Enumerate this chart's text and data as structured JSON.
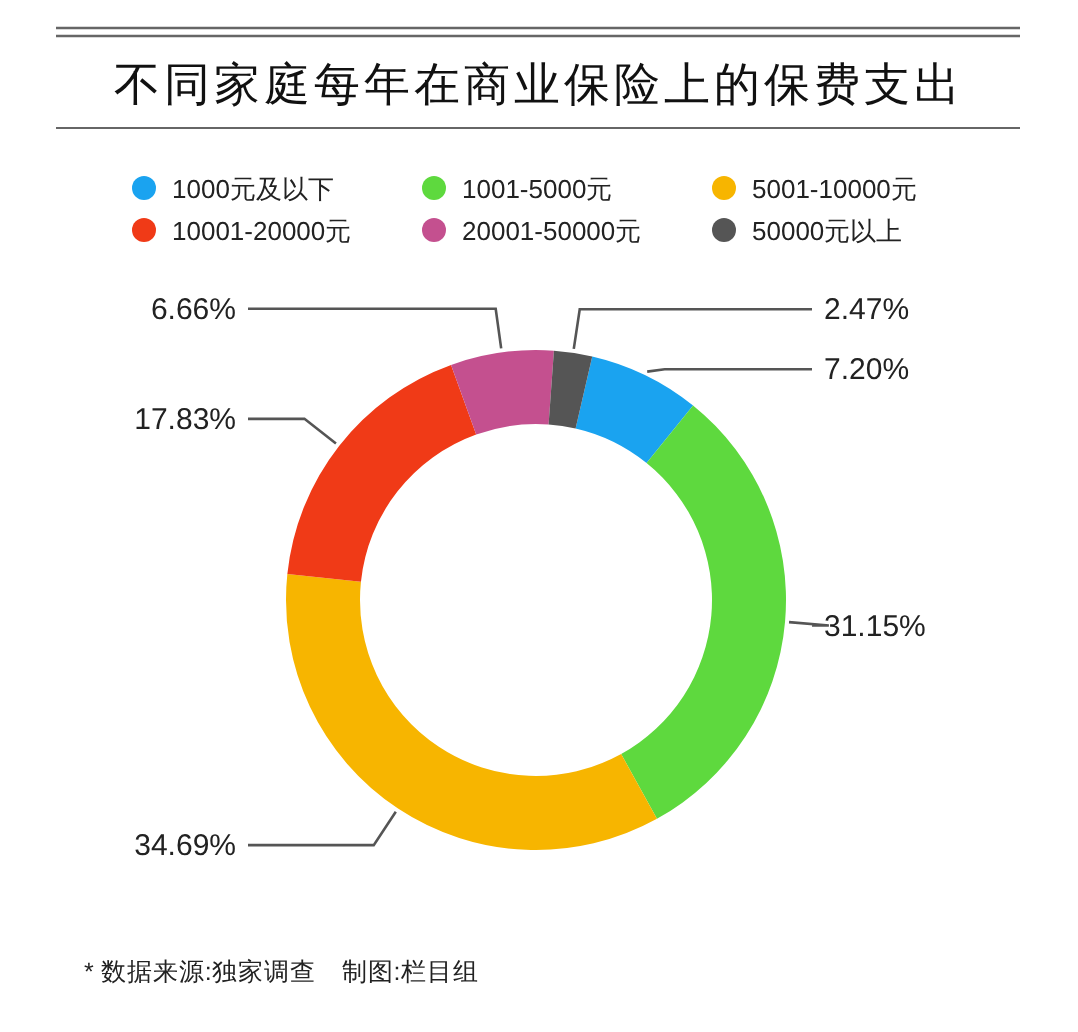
{
  "chart_data": {
    "type": "donut",
    "title": "不同家庭每年在商业保险上的保费支出",
    "categories": [
      "1000元及以下",
      "1001-5000元",
      "5001-10000元",
      "10001-20000元",
      "20001-50000元",
      "50000元以上"
    ],
    "values": [
      7.2,
      31.15,
      34.69,
      17.83,
      6.66,
      2.47
    ],
    "value_labels": [
      "7.20%",
      "31.15%",
      "34.69%",
      "17.83%",
      "6.66%",
      "2.47%"
    ],
    "colors": [
      "#1aa3f0",
      "#5ed93e",
      "#f7b500",
      "#f03a17",
      "#c4508f",
      "#555555"
    ],
    "legend": "top",
    "annotations": [
      "* 数据来源:独家调查　制图:栏目组"
    ]
  }
}
